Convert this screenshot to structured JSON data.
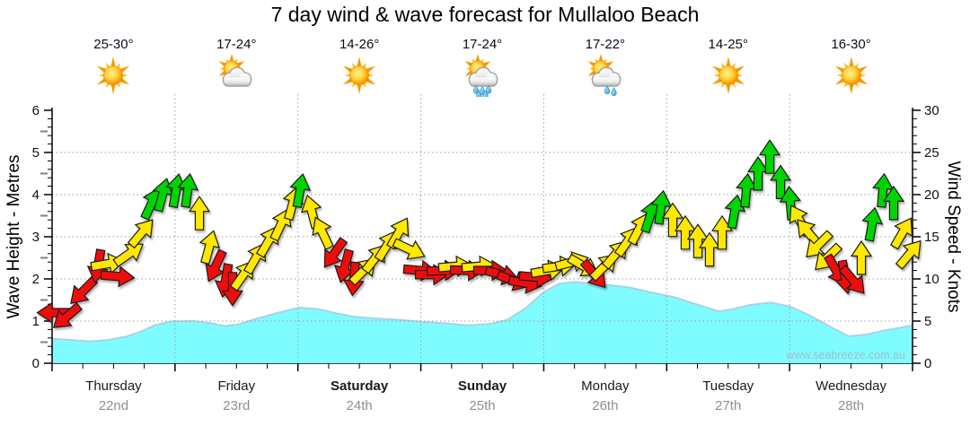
{
  "title": "7 day wind & wave forecast for Mullaloo Beach",
  "watermark": "www.seabreeze.com.au",
  "days": [
    {
      "name": "Thursday",
      "date": "22nd",
      "temp": "25-30°",
      "icon": "sun",
      "weekend": false
    },
    {
      "name": "Friday",
      "date": "23rd",
      "temp": "17-24°",
      "icon": "sun-cloud",
      "weekend": false
    },
    {
      "name": "Saturday",
      "date": "24th",
      "temp": "14-26°",
      "icon": "sun",
      "weekend": true
    },
    {
      "name": "Sunday",
      "date": "25th",
      "temp": "17-24°",
      "icon": "sun-cloud-heavy-rain",
      "weekend": true
    },
    {
      "name": "Monday",
      "date": "26th",
      "temp": "17-22°",
      "icon": "sun-cloud-light-rain",
      "weekend": false
    },
    {
      "name": "Tuesday",
      "date": "27th",
      "temp": "14-25°",
      "icon": "sun",
      "weekend": false
    },
    {
      "name": "Wednesday",
      "date": "28th",
      "temp": "16-30°",
      "icon": "sun",
      "weekend": false
    }
  ],
  "axes": {
    "left": {
      "label": "Wave Height - Metres",
      "ticks": [
        0,
        1,
        2,
        3,
        4,
        5,
        6
      ],
      "range": [
        0,
        6
      ]
    },
    "right": {
      "label": "Wind Speed - Knots",
      "ticks": [
        0,
        5,
        10,
        15,
        20,
        25,
        30
      ],
      "range": [
        0,
        30
      ]
    }
  },
  "colors": {
    "arrow_red": "#EE0A0A",
    "arrow_yellow": "#FFE800",
    "arrow_green": "#00D400",
    "arrow_outline": "#1a1a1a",
    "wave_fill": "#7FFCFF",
    "wave_edge": "#A8D2E8",
    "gridline": "#9c9c9c",
    "axis": "#000000",
    "date_text": "#8f8f8f",
    "watermark_text": "#A3BCC9"
  },
  "chart_data": {
    "type": "area+wind-arrows",
    "x_categories": [
      "Thursday 22nd",
      "Friday 23rd",
      "Saturday 24th",
      "Sunday 25th",
      "Monday 26th",
      "Tuesday 27th",
      "Wednesday 28th"
    ],
    "ylabel_left": "Wave Height - Metres",
    "ylim_left": [
      0,
      6
    ],
    "ylabel_right": "Wind Speed - Knots",
    "ylim_right": [
      0,
      30
    ],
    "grid": "dotted, horizontal at 1-5 m, vertical at day boundaries",
    "legend_position": "none",
    "wave_height_m": [
      [
        58,
        0.58
      ],
      [
        80,
        0.55
      ],
      [
        100,
        0.52
      ],
      [
        120,
        0.55
      ],
      [
        140,
        0.63
      ],
      [
        158,
        0.76
      ],
      [
        172,
        0.9
      ],
      [
        190,
        0.99
      ],
      [
        215,
        1.0
      ],
      [
        235,
        0.95
      ],
      [
        250,
        0.88
      ],
      [
        265,
        0.92
      ],
      [
        285,
        1.05
      ],
      [
        310,
        1.2
      ],
      [
        333,
        1.32
      ],
      [
        355,
        1.28
      ],
      [
        375,
        1.18
      ],
      [
        395,
        1.1
      ],
      [
        420,
        1.06
      ],
      [
        445,
        1.03
      ],
      [
        470,
        0.98
      ],
      [
        495,
        0.95
      ],
      [
        520,
        0.9
      ],
      [
        545,
        0.93
      ],
      [
        565,
        1.03
      ],
      [
        585,
        1.3
      ],
      [
        605,
        1.68
      ],
      [
        622,
        1.88
      ],
      [
        640,
        1.93
      ],
      [
        660,
        1.88
      ],
      [
        680,
        1.85
      ],
      [
        700,
        1.8
      ],
      [
        725,
        1.68
      ],
      [
        750,
        1.57
      ],
      [
        775,
        1.4
      ],
      [
        800,
        1.23
      ],
      [
        815,
        1.28
      ],
      [
        835,
        1.38
      ],
      [
        858,
        1.44
      ],
      [
        880,
        1.34
      ],
      [
        900,
        1.15
      ],
      [
        925,
        0.86
      ],
      [
        945,
        0.64
      ],
      [
        965,
        0.68
      ],
      [
        985,
        0.78
      ],
      [
        1002,
        0.84
      ],
      [
        1016,
        0.9
      ]
    ],
    "arrow_format": [
      "x_px",
      "knots",
      "direction_deg_cw_from_up",
      "color"
    ],
    "wind_arrows": [
      [
        60,
        6,
        270,
        "red"
      ],
      [
        74,
        5.5,
        230,
        "red"
      ],
      [
        92,
        8.5,
        225,
        "red"
      ],
      [
        109,
        11.5,
        190,
        "red"
      ],
      [
        120,
        11.8,
        80,
        "yellow"
      ],
      [
        131,
        10.3,
        95,
        "red"
      ],
      [
        144,
        13,
        55,
        "yellow"
      ],
      [
        158,
        15.5,
        40,
        "yellow"
      ],
      [
        169,
        19,
        25,
        "green"
      ],
      [
        181,
        20,
        15,
        "green"
      ],
      [
        196,
        20.5,
        10,
        "green"
      ],
      [
        209,
        20.5,
        8,
        "green"
      ],
      [
        222,
        17.8,
        0,
        "yellow"
      ],
      [
        233,
        13.8,
        15,
        "yellow"
      ],
      [
        240,
        11.5,
        205,
        "red"
      ],
      [
        251,
        9.8,
        190,
        "red"
      ],
      [
        259,
        8.8,
        180,
        "red"
      ],
      [
        271,
        10.5,
        35,
        "yellow"
      ],
      [
        285,
        12.5,
        30,
        "yellow"
      ],
      [
        299,
        14.5,
        30,
        "yellow"
      ],
      [
        313,
        16.5,
        25,
        "yellow"
      ],
      [
        326,
        19,
        15,
        "yellow"
      ],
      [
        334,
        20.5,
        10,
        "green"
      ],
      [
        347,
        18,
        345,
        "yellow"
      ],
      [
        359,
        15.5,
        335,
        "yellow"
      ],
      [
        372,
        13,
        215,
        "red"
      ],
      [
        384,
        11.5,
        195,
        "red"
      ],
      [
        394,
        10,
        185,
        "red"
      ],
      [
        405,
        11,
        45,
        "yellow"
      ],
      [
        418,
        12.5,
        38,
        "yellow"
      ],
      [
        431,
        14,
        32,
        "yellow"
      ],
      [
        444,
        15.5,
        30,
        "yellow"
      ],
      [
        456,
        13.5,
        115,
        "yellow"
      ],
      [
        468,
        11,
        95,
        "red"
      ],
      [
        481,
        10.5,
        90,
        "red"
      ],
      [
        494,
        11,
        88,
        "red"
      ],
      [
        507,
        11.5,
        85,
        "yellow"
      ],
      [
        520,
        11,
        92,
        "red"
      ],
      [
        533,
        11.5,
        85,
        "yellow"
      ],
      [
        546,
        11,
        90,
        "red"
      ],
      [
        559,
        10.5,
        105,
        "red"
      ],
      [
        572,
        9.8,
        110,
        "red"
      ],
      [
        585,
        9.5,
        100,
        "red"
      ],
      [
        597,
        10.2,
        95,
        "red"
      ],
      [
        610,
        11,
        80,
        "yellow"
      ],
      [
        623,
        11.5,
        82,
        "yellow"
      ],
      [
        637,
        12,
        75,
        "yellow"
      ],
      [
        650,
        11.5,
        120,
        "yellow"
      ],
      [
        662,
        10.5,
        140,
        "red"
      ],
      [
        673,
        11.5,
        45,
        "yellow"
      ],
      [
        686,
        13,
        40,
        "yellow"
      ],
      [
        699,
        14.5,
        35,
        "yellow"
      ],
      [
        712,
        16,
        28,
        "yellow"
      ],
      [
        724,
        17.5,
        18,
        "green"
      ],
      [
        736,
        18.5,
        8,
        "green"
      ],
      [
        749,
        17,
        0,
        "yellow"
      ],
      [
        763,
        15.5,
        0,
        "yellow"
      ],
      [
        777,
        14.5,
        0,
        "yellow"
      ],
      [
        790,
        13.5,
        0,
        "yellow"
      ],
      [
        804,
        15.5,
        0,
        "yellow"
      ],
      [
        818,
        18,
        10,
        "green"
      ],
      [
        831,
        20.5,
        5,
        "green"
      ],
      [
        844,
        22.5,
        0,
        "green"
      ],
      [
        857,
        24.5,
        0,
        "green"
      ],
      [
        869,
        21.5,
        0,
        "green"
      ],
      [
        880,
        19,
        355,
        "green"
      ],
      [
        890,
        17,
        330,
        "yellow"
      ],
      [
        900,
        15.5,
        320,
        "yellow"
      ],
      [
        911,
        14,
        225,
        "yellow"
      ],
      [
        921,
        12.5,
        225,
        "yellow"
      ],
      [
        931,
        11,
        150,
        "red"
      ],
      [
        941,
        10.2,
        170,
        "red"
      ],
      [
        950,
        9.8,
        140,
        "red"
      ],
      [
        959,
        12.5,
        0,
        "yellow"
      ],
      [
        971,
        16.5,
        10,
        "green"
      ],
      [
        983,
        20.5,
        5,
        "green"
      ],
      [
        995,
        19,
        0,
        "green"
      ],
      [
        1005,
        15.5,
        30,
        "yellow"
      ],
      [
        1013,
        13,
        40,
        "yellow"
      ]
    ]
  }
}
